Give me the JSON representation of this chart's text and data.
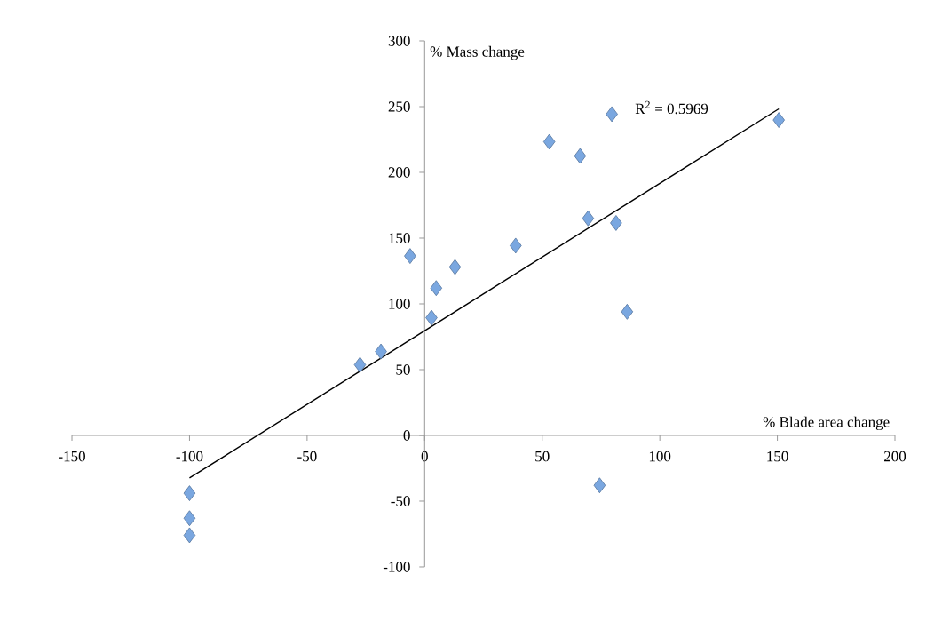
{
  "chart_data": {
    "type": "scatter",
    "xlabel": "% Blade area change",
    "ylabel": "% Mass change",
    "xlim": [
      -150,
      200
    ],
    "ylim": [
      -100,
      300
    ],
    "xticks": [
      -150,
      -100,
      -50,
      0,
      50,
      100,
      150,
      200
    ],
    "yticks": [
      -100,
      -50,
      0,
      50,
      100,
      150,
      200,
      250,
      300
    ],
    "grid": false,
    "series": [
      {
        "marker": "diamond",
        "color": "#7aa7e0",
        "x": [
          -100,
          -100,
          -100,
          -27.5,
          -18.6,
          -6.2,
          2.9,
          4.9,
          12.9,
          38.7,
          53.0,
          66.1,
          69.5,
          79.6,
          81.4,
          86.1,
          74.4,
          150.6
        ],
        "values": [
          -44,
          -63,
          -76,
          53.7,
          63.8,
          136.4,
          89.5,
          112,
          128,
          144.3,
          223.3,
          212.5,
          165,
          244.3,
          161.5,
          94,
          -38,
          239.8
        ]
      },
      {
        "type": "line",
        "marker": "none",
        "line_style": "solid",
        "color": "#000000",
        "x": [
          -100,
          150.6
        ],
        "values": [
          -32.4,
          248.3
        ]
      }
    ],
    "annotations": [
      "R$^{2}$ = 0.5969"
    ]
  }
}
